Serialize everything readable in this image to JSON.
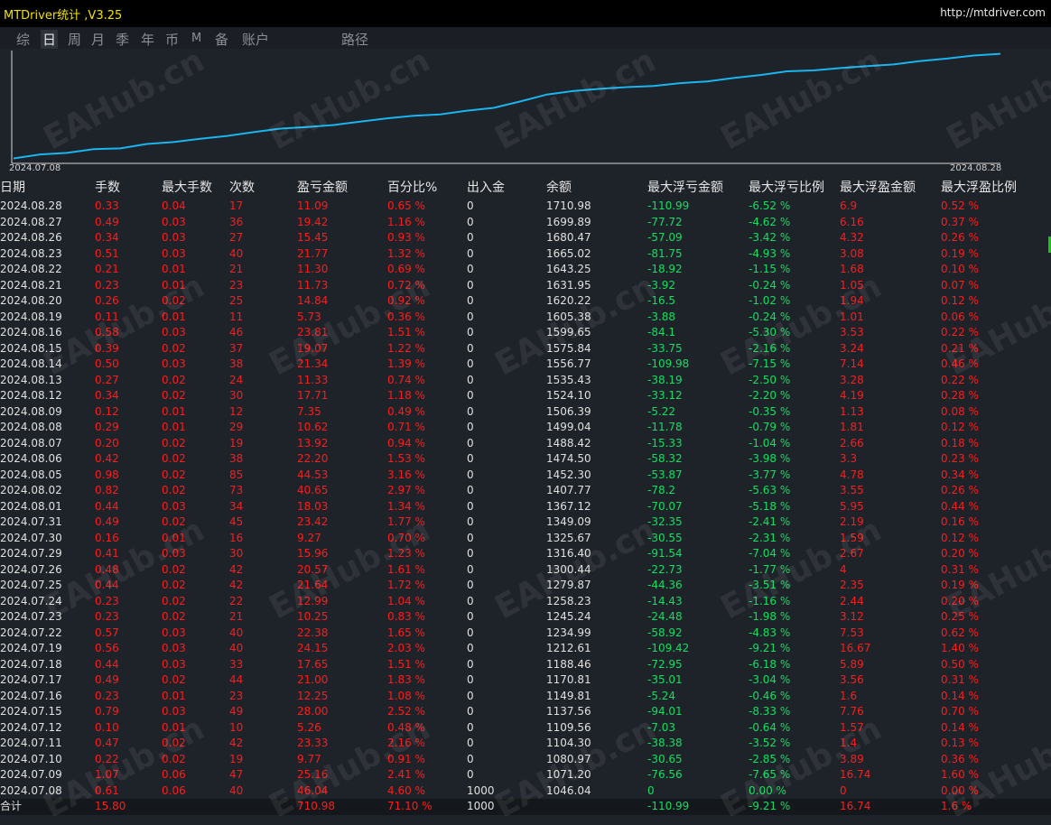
{
  "app": {
    "title": "MTDriver统计 ,V3.25",
    "link": "http://mtdriver.com"
  },
  "tabs": [
    {
      "label": "综",
      "active": false
    },
    {
      "label": "日",
      "active": true
    },
    {
      "label": "周",
      "active": false
    },
    {
      "label": "月",
      "active": false
    },
    {
      "label": "季",
      "active": false
    },
    {
      "label": "年",
      "active": false
    },
    {
      "label": "币",
      "active": false
    },
    {
      "label": "M",
      "active": false
    },
    {
      "label": "备",
      "active": false
    },
    {
      "label": "账户",
      "active": false
    },
    {
      "label": "路径",
      "active": false
    }
  ],
  "watermark": "EAHub.cn",
  "colors": {
    "curve": "#1ab4ee",
    "loss_red": "#ff1c1c",
    "float_green": "#10e060",
    "text": "#e0e0e0",
    "background": "#1e2229"
  },
  "chart_data": {
    "type": "line",
    "x_start_label": "2024.07.08",
    "x_end_label": "2024.08.28",
    "x": [
      "2024.07.08",
      "2024.07.09",
      "2024.07.10",
      "2024.07.11",
      "2024.07.12",
      "2024.07.15",
      "2024.07.16",
      "2024.07.17",
      "2024.07.18",
      "2024.07.19",
      "2024.07.22",
      "2024.07.23",
      "2024.07.24",
      "2024.07.25",
      "2024.07.26",
      "2024.07.29",
      "2024.07.30",
      "2024.07.31",
      "2024.08.01",
      "2024.08.02",
      "2024.08.05",
      "2024.08.06",
      "2024.08.07",
      "2024.08.08",
      "2024.08.09",
      "2024.08.12",
      "2024.08.13",
      "2024.08.14",
      "2024.08.15",
      "2024.08.16",
      "2024.08.19",
      "2024.08.20",
      "2024.08.21",
      "2024.08.22",
      "2024.08.23",
      "2024.08.26",
      "2024.08.27",
      "2024.08.28"
    ],
    "series": [
      {
        "values": [
          1046.04,
          1071.2,
          1080.97,
          1104.3,
          1109.56,
          1137.56,
          1149.81,
          1170.81,
          1188.46,
          1212.61,
          1234.99,
          1245.24,
          1258.23,
          1279.87,
          1300.44,
          1316.4,
          1325.67,
          1349.09,
          1367.12,
          1407.77,
          1452.3,
          1474.5,
          1488.42,
          1499.04,
          1506.39,
          1524.1,
          1535.43,
          1556.77,
          1575.84,
          1599.65,
          1605.38,
          1620.22,
          1631.95,
          1643.25,
          1665.02,
          1680.47,
          1699.89,
          1710.98
        ]
      }
    ]
  },
  "table": {
    "headers": [
      "日期",
      "手数",
      "最大手数",
      "次数",
      "盈亏金额",
      "百分比%",
      "出入金",
      "余额",
      "最大浮亏金额",
      "最大浮亏比例",
      "最大浮盈金额",
      "最大浮盈比例"
    ],
    "rows": [
      [
        "2024.08.28",
        "0.33",
        "0.04",
        "17",
        "11.09",
        "0.65 %",
        "0",
        "1710.98",
        "-110.99",
        "-6.52 %",
        "6.9",
        "0.52 %"
      ],
      [
        "2024.08.27",
        "0.49",
        "0.03",
        "36",
        "19.42",
        "1.16 %",
        "0",
        "1699.89",
        "-77.72",
        "-4.62 %",
        "6.16",
        "0.37 %"
      ],
      [
        "2024.08.26",
        "0.34",
        "0.03",
        "27",
        "15.45",
        "0.93 %",
        "0",
        "1680.47",
        "-57.09",
        "-3.42 %",
        "4.32",
        "0.26 %"
      ],
      [
        "2024.08.23",
        "0.51",
        "0.03",
        "40",
        "21.77",
        "1.32 %",
        "0",
        "1665.02",
        "-81.75",
        "-4.93 %",
        "3.08",
        "0.19 %"
      ],
      [
        "2024.08.22",
        "0.21",
        "0.01",
        "21",
        "11.30",
        "0.69 %",
        "0",
        "1643.25",
        "-18.92",
        "-1.15 %",
        "1.68",
        "0.10 %"
      ],
      [
        "2024.08.21",
        "0.23",
        "0.01",
        "23",
        "11.73",
        "0.72 %",
        "0",
        "1631.95",
        "-3.92",
        "-0.24 %",
        "1.05",
        "0.07 %"
      ],
      [
        "2024.08.20",
        "0.26",
        "0.02",
        "25",
        "14.84",
        "0.92 %",
        "0",
        "1620.22",
        "-16.5",
        "-1.02 %",
        "1.94",
        "0.12 %"
      ],
      [
        "2024.08.19",
        "0.11",
        "0.01",
        "11",
        "5.73",
        "0.36 %",
        "0",
        "1605.38",
        "-3.88",
        "-0.24 %",
        "1.01",
        "0.06 %"
      ],
      [
        "2024.08.16",
        "0.58",
        "0.03",
        "46",
        "23.81",
        "1.51 %",
        "0",
        "1599.65",
        "-84.1",
        "-5.30 %",
        "3.53",
        "0.22 %"
      ],
      [
        "2024.08.15",
        "0.39",
        "0.02",
        "37",
        "19.07",
        "1.22 %",
        "0",
        "1575.84",
        "-33.75",
        "-2.16 %",
        "3.24",
        "0.21 %"
      ],
      [
        "2024.08.14",
        "0.50",
        "0.03",
        "38",
        "21.34",
        "1.39 %",
        "0",
        "1556.77",
        "-109.98",
        "-7.15 %",
        "7.14",
        "0.46 %"
      ],
      [
        "2024.08.13",
        "0.27",
        "0.02",
        "24",
        "11.33",
        "0.74 %",
        "0",
        "1535.43",
        "-38.19",
        "-2.50 %",
        "3.28",
        "0.22 %"
      ],
      [
        "2024.08.12",
        "0.34",
        "0.02",
        "30",
        "17.71",
        "1.18 %",
        "0",
        "1524.10",
        "-33.12",
        "-2.20 %",
        "4.19",
        "0.28 %"
      ],
      [
        "2024.08.09",
        "0.12",
        "0.01",
        "12",
        "7.35",
        "0.49 %",
        "0",
        "1506.39",
        "-5.22",
        "-0.35 %",
        "1.13",
        "0.08 %"
      ],
      [
        "2024.08.08",
        "0.29",
        "0.01",
        "29",
        "10.62",
        "0.71 %",
        "0",
        "1499.04",
        "-11.78",
        "-0.79 %",
        "1.81",
        "0.12 %"
      ],
      [
        "2024.08.07",
        "0.20",
        "0.02",
        "19",
        "13.92",
        "0.94 %",
        "0",
        "1488.42",
        "-15.33",
        "-1.04 %",
        "2.66",
        "0.18 %"
      ],
      [
        "2024.08.06",
        "0.42",
        "0.02",
        "38",
        "22.20",
        "1.53 %",
        "0",
        "1474.50",
        "-58.32",
        "-3.98 %",
        "3.3",
        "0.23 %"
      ],
      [
        "2024.08.05",
        "0.98",
        "0.02",
        "85",
        "44.53",
        "3.16 %",
        "0",
        "1452.30",
        "-53.87",
        "-3.77 %",
        "4.78",
        "0.34 %"
      ],
      [
        "2024.08.02",
        "0.82",
        "0.02",
        "73",
        "40.65",
        "2.97 %",
        "0",
        "1407.77",
        "-78.2",
        "-5.63 %",
        "3.55",
        "0.26 %"
      ],
      [
        "2024.08.01",
        "0.44",
        "0.03",
        "34",
        "18.03",
        "1.34 %",
        "0",
        "1367.12",
        "-70.07",
        "-5.18 %",
        "5.95",
        "0.44 %"
      ],
      [
        "2024.07.31",
        "0.49",
        "0.02",
        "45",
        "23.42",
        "1.77 %",
        "0",
        "1349.09",
        "-32.35",
        "-2.41 %",
        "2.19",
        "0.16 %"
      ],
      [
        "2024.07.30",
        "0.16",
        "0.01",
        "16",
        "9.27",
        "0.70 %",
        "0",
        "1325.67",
        "-30.55",
        "-2.31 %",
        "1.59",
        "0.12 %"
      ],
      [
        "2024.07.29",
        "0.41",
        "0.03",
        "30",
        "15.96",
        "1.23 %",
        "0",
        "1316.40",
        "-91.54",
        "-7.04 %",
        "2.67",
        "0.20 %"
      ],
      [
        "2024.07.26",
        "0.48",
        "0.02",
        "42",
        "20.57",
        "1.61 %",
        "0",
        "1300.44",
        "-22.73",
        "-1.77 %",
        "4",
        "0.31 %"
      ],
      [
        "2024.07.25",
        "0.44",
        "0.02",
        "42",
        "21.64",
        "1.72 %",
        "0",
        "1279.87",
        "-44.36",
        "-3.51 %",
        "2.35",
        "0.19 %"
      ],
      [
        "2024.07.24",
        "0.23",
        "0.02",
        "22",
        "12.99",
        "1.04 %",
        "0",
        "1258.23",
        "-14.43",
        "-1.16 %",
        "2.44",
        "0.20 %"
      ],
      [
        "2024.07.23",
        "0.23",
        "0.02",
        "21",
        "10.25",
        "0.83 %",
        "0",
        "1245.24",
        "-24.48",
        "-1.98 %",
        "3.12",
        "0.25 %"
      ],
      [
        "2024.07.22",
        "0.57",
        "0.03",
        "40",
        "22.38",
        "1.65 %",
        "0",
        "1234.99",
        "-58.92",
        "-4.83 %",
        "7.53",
        "0.62 %"
      ],
      [
        "2024.07.19",
        "0.56",
        "0.03",
        "40",
        "24.15",
        "2.03 %",
        "0",
        "1212.61",
        "-109.42",
        "-9.21 %",
        "16.67",
        "1.40 %"
      ],
      [
        "2024.07.18",
        "0.44",
        "0.03",
        "33",
        "17.65",
        "1.51 %",
        "0",
        "1188.46",
        "-72.95",
        "-6.18 %",
        "5.89",
        "0.50 %"
      ],
      [
        "2024.07.17",
        "0.49",
        "0.02",
        "44",
        "21.00",
        "1.83 %",
        "0",
        "1170.81",
        "-35.01",
        "-3.04 %",
        "3.56",
        "0.31 %"
      ],
      [
        "2024.07.16",
        "0.23",
        "0.01",
        "23",
        "12.25",
        "1.08 %",
        "0",
        "1149.81",
        "-5.24",
        "-0.46 %",
        "1.6",
        "0.14 %"
      ],
      [
        "2024.07.15",
        "0.79",
        "0.03",
        "49",
        "28.00",
        "2.52 %",
        "0",
        "1137.56",
        "-94.01",
        "-8.33 %",
        "7.76",
        "0.70 %"
      ],
      [
        "2024.07.12",
        "0.10",
        "0.01",
        "10",
        "5.26",
        "0.48 %",
        "0",
        "1109.56",
        "-7.03",
        "-0.64 %",
        "1.57",
        "0.14 %"
      ],
      [
        "2024.07.11",
        "0.47",
        "0.02",
        "42",
        "23.33",
        "2.16 %",
        "0",
        "1104.30",
        "-38.38",
        "-3.52 %",
        "1.4",
        "0.13 %"
      ],
      [
        "2024.07.10",
        "0.22",
        "0.02",
        "19",
        "9.77",
        "0.91 %",
        "0",
        "1080.97",
        "-30.65",
        "-2.85 %",
        "3.89",
        "0.36 %"
      ],
      [
        "2024.07.09",
        "1.07",
        "0.06",
        "47",
        "25.16",
        "2.41 %",
        "0",
        "1071.20",
        "-76.56",
        "-7.65 %",
        "16.74",
        "1.60 %"
      ],
      [
        "2024.07.08",
        "0.61",
        "0.06",
        "40",
        "46.04",
        "4.60 %",
        "1000",
        "1046.04",
        "0",
        "0.00 %",
        "0",
        "0.00 %"
      ]
    ],
    "total": [
      "合计",
      "15.80",
      "",
      "",
      "710.98",
      "71.10 %",
      "1000",
      "",
      "-110.99",
      "-9.21 %",
      "16.74",
      "1.6 %"
    ]
  }
}
